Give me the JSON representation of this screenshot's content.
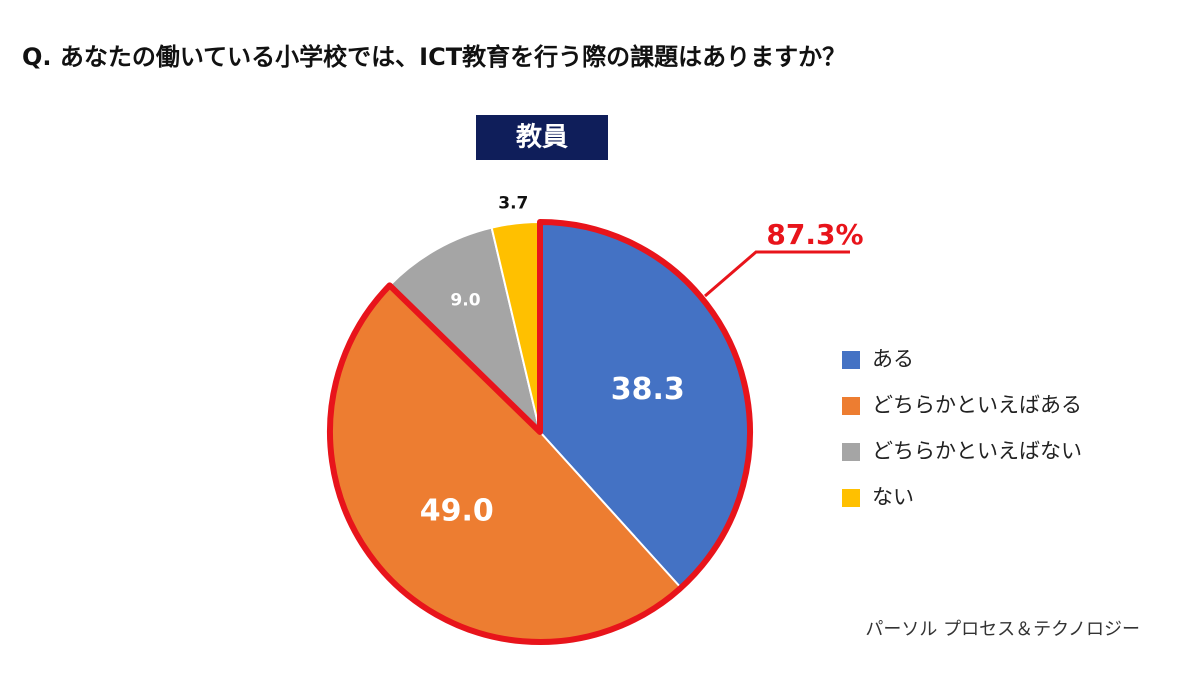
{
  "chart_data": {
    "type": "pie",
    "title": "Q. あなたの働いている小学校では、ICT教育を行う際の課題はありますか？",
    "subtitle": "教員",
    "categories": [
      "ある",
      "どちらかといえばある",
      "どちらかといえばない",
      "ない"
    ],
    "values": [
      38.3,
      49.0,
      9.0,
      3.7
    ],
    "value_labels": [
      "38.3",
      "49.0",
      "9.0",
      "3.7"
    ],
    "colors": [
      "#4472c4",
      "#ed7d31",
      "#a5a5a5",
      "#ffc000"
    ],
    "annotation": "87.3%",
    "source": "パーソル プロセス＆テクノロジー"
  }
}
